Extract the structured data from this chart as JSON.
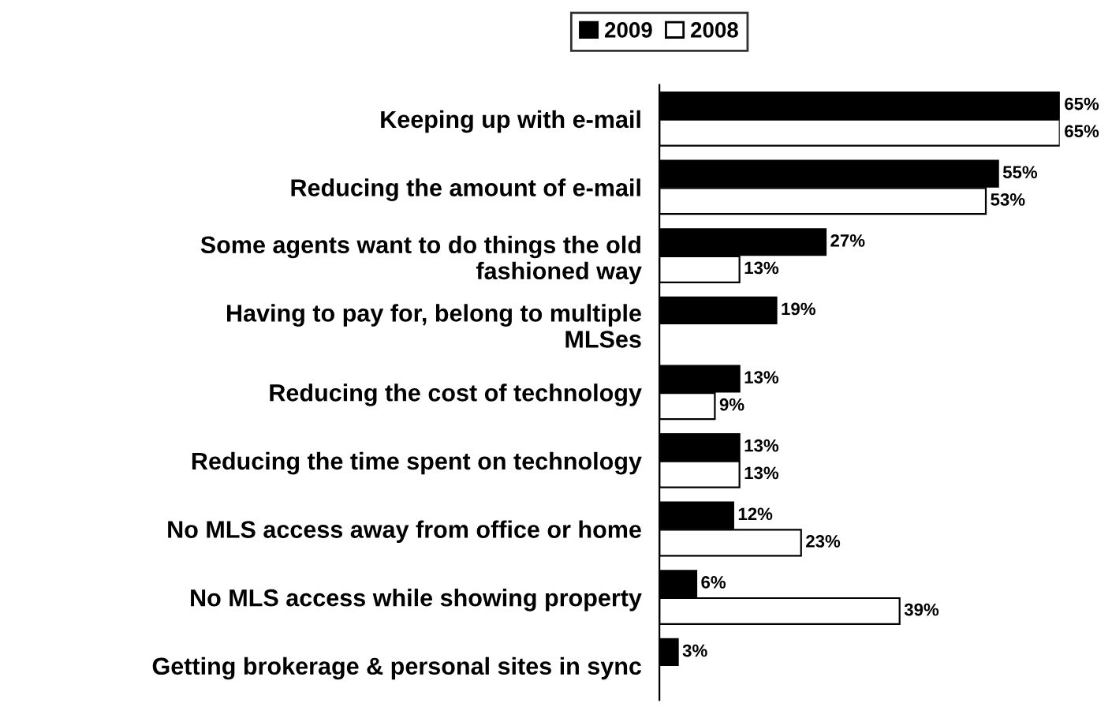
{
  "chart_data": {
    "type": "bar",
    "orientation": "horizontal",
    "categories": [
      "Keeping up with e-mail",
      "Reducing the amount of e-mail",
      "Some agents want to do things the old\nfashioned way",
      "Having to pay for, belong to multiple\nMLSes",
      "Reducing the cost of technology",
      "Reducing the time spent on technology",
      "No MLS access away from office or home",
      "No MLS access while showing property",
      "Getting brokerage & personal sites in sync"
    ],
    "series": [
      {
        "name": "2009",
        "color": "#000000",
        "values": [
          65,
          55,
          27,
          19,
          13,
          13,
          12,
          6,
          3
        ],
        "value_labels": [
          "65%",
          "55%",
          "27%",
          "19%",
          "13%",
          "13%",
          "12%",
          "6%",
          "3%"
        ]
      },
      {
        "name": "2008",
        "color": "#ffffff",
        "values": [
          65,
          53,
          13,
          null,
          9,
          13,
          23,
          39,
          null
        ],
        "value_labels": [
          "65%",
          "53%",
          "13%",
          null,
          "9%",
          "13%",
          "23%",
          "39%",
          null
        ]
      }
    ],
    "legend": "top",
    "grid": false
  }
}
